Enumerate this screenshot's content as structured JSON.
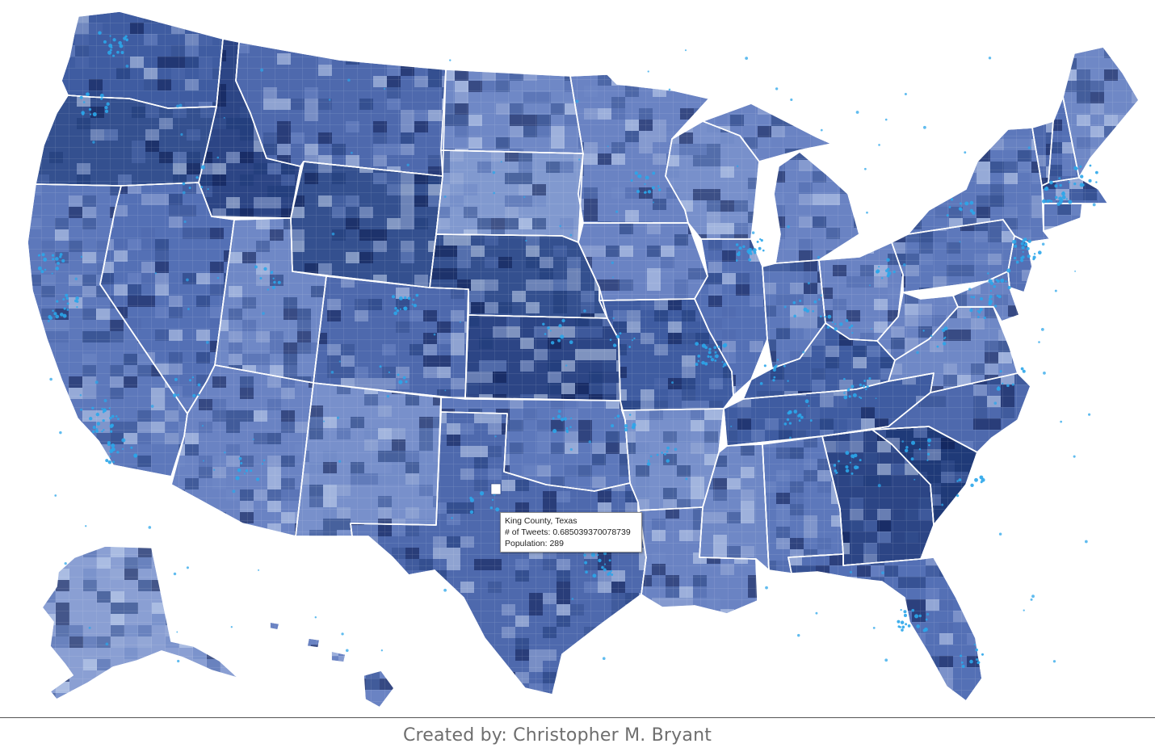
{
  "map": {
    "fill_colors": {
      "very_light": "#c5d3ef",
      "light": "#9aadd9",
      "mid": "#6f88c6",
      "mid_dark": "#4e69ad",
      "dark": "#34508f",
      "darker": "#1f3a78",
      "darkest": "#0b1a4f",
      "tweet_dot": "#2ba6ea",
      "state_border": "#ffffff",
      "highlight": "#ffffff"
    },
    "states": [
      {
        "name": "Washington",
        "fill": "#3f5ca1"
      },
      {
        "name": "Oregon",
        "fill": "#34508f"
      },
      {
        "name": "California",
        "fill": "#5d78bb"
      },
      {
        "name": "Idaho",
        "fill": "#2c4585"
      },
      {
        "name": "Nevada",
        "fill": "#5470b5"
      },
      {
        "name": "Montana",
        "fill": "#4e69ad"
      },
      {
        "name": "Wyoming",
        "fill": "#34508f"
      },
      {
        "name": "Utah",
        "fill": "#6f88c6"
      },
      {
        "name": "Arizona",
        "fill": "#6a83c3"
      },
      {
        "name": "Colorado",
        "fill": "#4e69ad"
      },
      {
        "name": "New Mexico",
        "fill": "#7890cb"
      },
      {
        "name": "North Dakota",
        "fill": "#6f88c6"
      },
      {
        "name": "South Dakota",
        "fill": "#8199cf"
      },
      {
        "name": "Nebraska",
        "fill": "#34508f"
      },
      {
        "name": "Kansas",
        "fill": "#2c4585"
      },
      {
        "name": "Oklahoma",
        "fill": "#5d78bb"
      },
      {
        "name": "Texas",
        "fill": "#4e69ad"
      },
      {
        "name": "Minnesota",
        "fill": "#6a83c3"
      },
      {
        "name": "Iowa",
        "fill": "#6a83c3"
      },
      {
        "name": "Missouri",
        "fill": "#3f5ca1"
      },
      {
        "name": "Arkansas",
        "fill": "#7890cb"
      },
      {
        "name": "Louisiana",
        "fill": "#6a83c3"
      },
      {
        "name": "Wisconsin",
        "fill": "#7890cb"
      },
      {
        "name": "Illinois",
        "fill": "#5470b5"
      },
      {
        "name": "Michigan",
        "fill": "#6a83c3"
      },
      {
        "name": "Indiana",
        "fill": "#5d78bb"
      },
      {
        "name": "Ohio",
        "fill": "#6a83c3"
      },
      {
        "name": "Kentucky",
        "fill": "#3f5ca1"
      },
      {
        "name": "Tennessee",
        "fill": "#3f5ca1"
      },
      {
        "name": "Mississippi",
        "fill": "#6f88c6"
      },
      {
        "name": "Alabama",
        "fill": "#5d78bb"
      },
      {
        "name": "Georgia",
        "fill": "#2c4585"
      },
      {
        "name": "Florida",
        "fill": "#5470b5"
      },
      {
        "name": "South Carolina",
        "fill": "#1f3a78"
      },
      {
        "name": "North Carolina",
        "fill": "#4e69ad"
      },
      {
        "name": "Virginia",
        "fill": "#6f88c6"
      },
      {
        "name": "West Virginia",
        "fill": "#6a83c3"
      },
      {
        "name": "Pennsylvania",
        "fill": "#5d78bb"
      },
      {
        "name": "New York",
        "fill": "#5d78bb"
      },
      {
        "name": "Vermont",
        "fill": "#4e69ad"
      },
      {
        "name": "New Hampshire",
        "fill": "#5470b5"
      },
      {
        "name": "Maine",
        "fill": "#6f88c6"
      },
      {
        "name": "Massachusetts",
        "fill": "#5470b5"
      },
      {
        "name": "Connecticut",
        "fill": "#5d78bb"
      },
      {
        "name": "New Jersey",
        "fill": "#5470b5"
      },
      {
        "name": "Maryland",
        "fill": "#6a83c3"
      },
      {
        "name": "Delaware",
        "fill": "#6a83c3"
      },
      {
        "name": "Alaska",
        "fill": "#8a9fd3"
      },
      {
        "name": "Hawaii",
        "fill": "#6a83c3"
      }
    ],
    "highlighted_county": "King County, Texas"
  },
  "tooltip": {
    "county": "King County, Texas",
    "tweets": "# of Tweets: 0.685039370078739",
    "population": "Population: 289"
  },
  "footer": {
    "credit": "Created by: Christopher M. Bryant"
  }
}
